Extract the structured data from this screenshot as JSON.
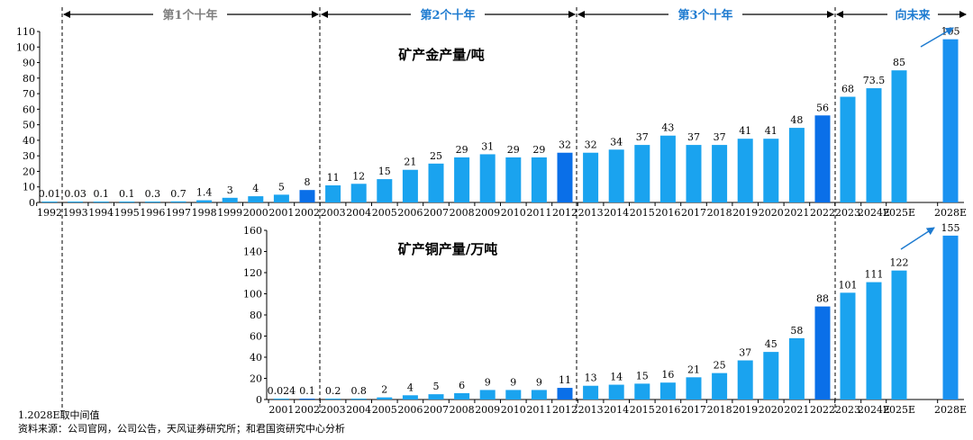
{
  "decades": [
    {
      "label": "第1个十年",
      "color": "#7f7f7f"
    },
    {
      "label": "第2个十年",
      "color": "#1e7bd0"
    },
    {
      "label": "第3个十年",
      "color": "#1e7bd0"
    },
    {
      "label": "向未来",
      "color": "#1e7bd0"
    }
  ],
  "colors": {
    "bar": "#1aa3ef",
    "highlight": "#0a6fe8",
    "future": "#1a91f0",
    "arrow": "#1e7bd0"
  },
  "footnotes": {
    "note": "1.2028E取中间值",
    "source": "资料来源：公司官网，公司公告，天风证券研究所；和君国资研究中心分析"
  },
  "chart_data": [
    {
      "type": "bar",
      "title": "矿产金产量/吨",
      "ylim": [
        0,
        110
      ],
      "yticks": [
        0,
        10,
        20,
        30,
        40,
        50,
        60,
        70,
        80,
        90,
        100,
        110
      ],
      "categories": [
        "1992",
        "1993",
        "1994",
        "1995",
        "1996",
        "1997",
        "1998",
        "1999",
        "2000",
        "2001",
        "2002",
        "2003",
        "2004",
        "2005",
        "2006",
        "2007",
        "2008",
        "2009",
        "2010",
        "2011",
        "2012",
        "2013",
        "2014",
        "2015",
        "2016",
        "2017",
        "2018",
        "2019",
        "2020",
        "2021",
        "2022",
        "2023",
        "2024E",
        "2025E",
        "2028E"
      ],
      "values": [
        0.01,
        0.03,
        0.1,
        0.1,
        0.3,
        0.7,
        1.4,
        3,
        4,
        5,
        8,
        11,
        12,
        15,
        21,
        25,
        29,
        31,
        29,
        29,
        32,
        32,
        34,
        37,
        43,
        37,
        37,
        41,
        41,
        48,
        56,
        68,
        73.5,
        85,
        105
      ],
      "labels": [
        "0.01",
        "0.03",
        "0.1",
        "0.1",
        "0.3",
        "0.7",
        "1.4",
        "3",
        "4",
        "5",
        "8",
        "11",
        "12",
        "15",
        "21",
        "25",
        "29",
        "31",
        "29",
        "29",
        "32",
        "32",
        "34",
        "37",
        "43",
        "37",
        "37",
        "41",
        "41",
        "48",
        "56",
        "68",
        "73.5",
        "85",
        "105"
      ],
      "highlight": [
        "2002",
        "2012",
        "2022",
        "2028E"
      ]
    },
    {
      "type": "bar",
      "title": "矿产铜产量/万吨",
      "ylim": [
        0,
        160
      ],
      "yticks": [
        0,
        20,
        40,
        60,
        80,
        100,
        120,
        140,
        160
      ],
      "categories": [
        "2001",
        "2002",
        "2003",
        "2004",
        "2005",
        "2006",
        "2007",
        "2008",
        "2009",
        "2010",
        "2011",
        "2012",
        "2013",
        "2014",
        "2015",
        "2016",
        "2017",
        "2018",
        "2019",
        "2020",
        "2021",
        "2022",
        "2023",
        "2024E",
        "2025E",
        "2028E"
      ],
      "values": [
        0.024,
        0.1,
        0.2,
        0.8,
        2,
        4,
        5,
        6,
        9,
        9,
        9,
        11,
        13,
        14,
        15,
        16,
        21,
        25,
        37,
        45,
        58,
        88,
        101,
        111,
        122,
        155
      ],
      "labels": [
        "0.024",
        "0.1",
        "0.2",
        "0.8",
        "2",
        "4",
        "5",
        "6",
        "9",
        "9",
        "9",
        "11",
        "13",
        "14",
        "15",
        "16",
        "21",
        "25",
        "37",
        "45",
        "58",
        "88",
        "101",
        "111",
        "122",
        "155"
      ],
      "highlight": [
        "2002",
        "2012",
        "2022",
        "2028E"
      ]
    }
  ]
}
